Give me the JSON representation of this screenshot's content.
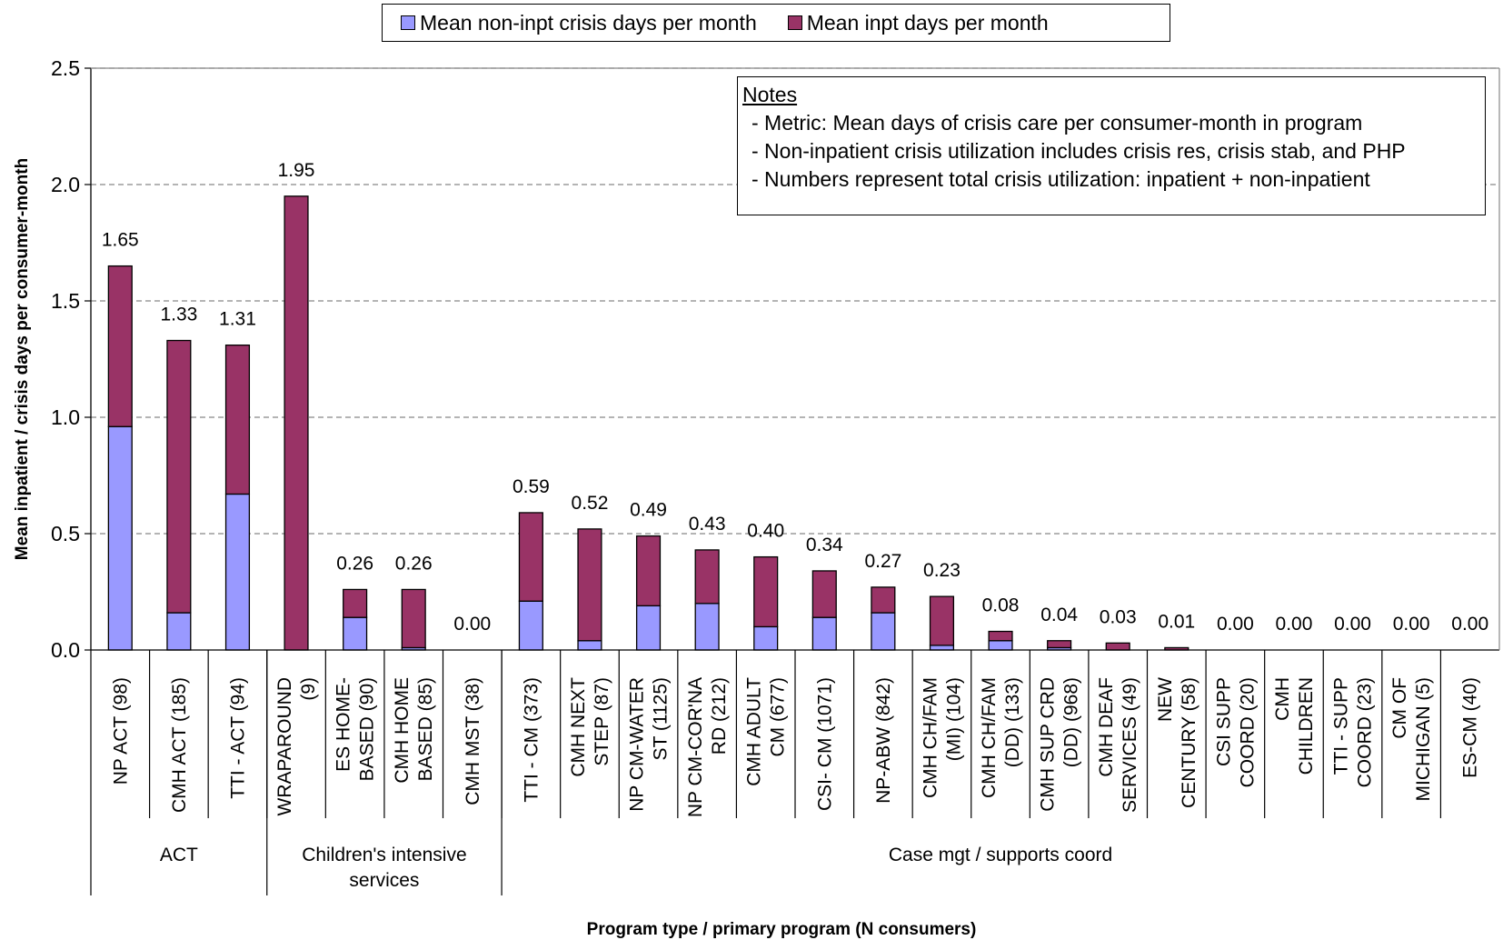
{
  "legend": {
    "items": [
      {
        "label": "Mean non-inpt crisis days per month",
        "color": "#9999FF"
      },
      {
        "label": "Mean inpt days per month",
        "color": "#993366"
      }
    ]
  },
  "notes": {
    "title": "Notes",
    "lines": [
      "- Metric: Mean days of crisis care per consumer-month in program",
      "- Non-inpatient crisis utilization includes crisis res, crisis stab, and PHP",
      "- Numbers represent total crisis utilization: inpatient + non-inpatient"
    ]
  },
  "chart_data": {
    "type": "bar",
    "stacked": true,
    "title": "",
    "xlabel": "Program type / primary program (N consumers)",
    "ylabel": "Mean inpatient / crisis days per consumer-month",
    "ylim": [
      0,
      2.5
    ],
    "yticks": [
      "0.0",
      "0.5",
      "1.0",
      "1.5",
      "2.0",
      "2.5"
    ],
    "grid": true,
    "legend_position": "top",
    "categories": [
      [
        "NP ACT (98)"
      ],
      [
        "CMH ACT (185)"
      ],
      [
        "TTI - ACT (94)"
      ],
      [
        "WRAPAROUND",
        "(9)"
      ],
      [
        "ES HOME-",
        "BASED (90)"
      ],
      [
        "CMH HOME",
        "BASED (85)"
      ],
      [
        "CMH MST (38)"
      ],
      [
        "TTI - CM (373)"
      ],
      [
        "CMH NEXT",
        "STEP (87)"
      ],
      [
        "NP CM-WATER",
        "ST (1125)"
      ],
      [
        "NP CM-COR'NA",
        "RD (212)"
      ],
      [
        "CMH ADULT",
        "CM (677)"
      ],
      [
        "CSI- CM (1071)"
      ],
      [
        "NP-ABW (842)"
      ],
      [
        "CMH CH/FAM",
        "(MI) (104)"
      ],
      [
        "CMH CH/FAM",
        "(DD) (133)"
      ],
      [
        "CMH SUP CRD",
        "(DD) (968)"
      ],
      [
        "CMH DEAF",
        "SERVICES (49)"
      ],
      [
        "NEW",
        "CENTURY (58)"
      ],
      [
        "CSI SUPP",
        "COORD (20)"
      ],
      [
        "CMH",
        "CHILDREN"
      ],
      [
        "TTI - SUPP",
        "COORD (23)"
      ],
      [
        "CM OF",
        "MICHIGAN (5)"
      ],
      [
        "ES-CM (40)"
      ]
    ],
    "groups": [
      {
        "label": [
          "ACT"
        ],
        "start": 0,
        "end": 2
      },
      {
        "label": [
          "Children's intensive",
          "services"
        ],
        "start": 3,
        "end": 6
      },
      {
        "label": [
          "Case mgt / supports coord"
        ],
        "start": 7,
        "end": 23
      }
    ],
    "series": [
      {
        "name": "Mean non-inpt crisis days per month",
        "values": [
          0.96,
          0.16,
          0.67,
          0.0,
          0.14,
          0.01,
          0.0,
          0.21,
          0.04,
          0.19,
          0.2,
          0.1,
          0.14,
          0.16,
          0.02,
          0.04,
          0.01,
          0.0,
          0.0,
          0.0,
          0.0,
          0.0,
          0.0,
          0.0
        ]
      },
      {
        "name": "Mean inpt days per month",
        "values": [
          0.69,
          1.17,
          0.64,
          1.95,
          0.12,
          0.25,
          0.0,
          0.38,
          0.48,
          0.3,
          0.23,
          0.3,
          0.2,
          0.11,
          0.21,
          0.04,
          0.03,
          0.03,
          0.01,
          0.0,
          0.0,
          0.0,
          0.0,
          0.0
        ]
      }
    ],
    "data_labels": [
      "1.65",
      "1.33",
      "1.31",
      "1.95",
      "0.26",
      "0.26",
      "0.00",
      "0.59",
      "0.52",
      "0.49",
      "0.43",
      "0.40",
      "0.34",
      "0.27",
      "0.23",
      "0.08",
      "0.04",
      "0.03",
      "0.01",
      "0.00",
      "0.00",
      "0.00",
      "0.00",
      "0.00"
    ]
  }
}
